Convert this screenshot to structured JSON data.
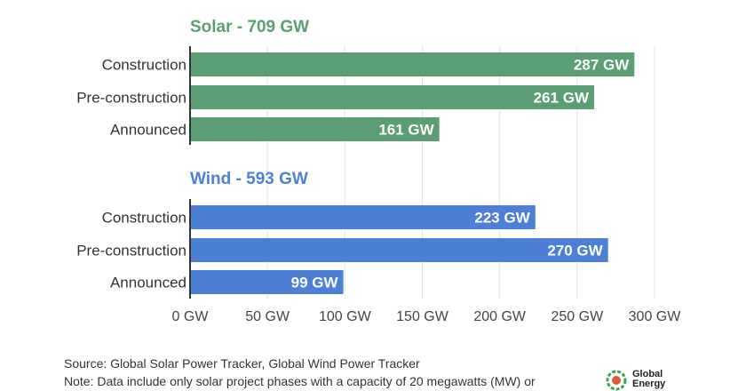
{
  "chart_data": {
    "type": "bar",
    "orientation": "horizontal",
    "categories": [
      "Construction",
      "Pre-construction",
      "Announced"
    ],
    "series": [
      {
        "name": "Solar",
        "title": "Solar - 709 GW",
        "color": "#5b9e74",
        "values": [
          287,
          261,
          161
        ],
        "labels": [
          "287 GW",
          "261 GW",
          "161 GW"
        ]
      },
      {
        "name": "Wind",
        "title": "Wind - 593 GW",
        "color": "#4c7fd5",
        "values": [
          223,
          270,
          99
        ],
        "labels": [
          "223 GW",
          "270 GW",
          "99 GW"
        ]
      }
    ],
    "xlim": [
      0,
      300
    ],
    "xticks": [
      0,
      50,
      100,
      150,
      200,
      250,
      300
    ],
    "xtick_labels": [
      "0 GW",
      "50 GW",
      "100 GW",
      "150 GW",
      "200 GW",
      "250 GW",
      "300 GW"
    ],
    "grid": true
  },
  "footer": {
    "source": "Source: Global Solar Power Tracker, Global Wind Power Tracker",
    "note": "Note: Data include only solar project phases with a capacity of 20 megawatts (MW) or"
  },
  "logo": {
    "line1": "Global",
    "line2": "Energy"
  }
}
